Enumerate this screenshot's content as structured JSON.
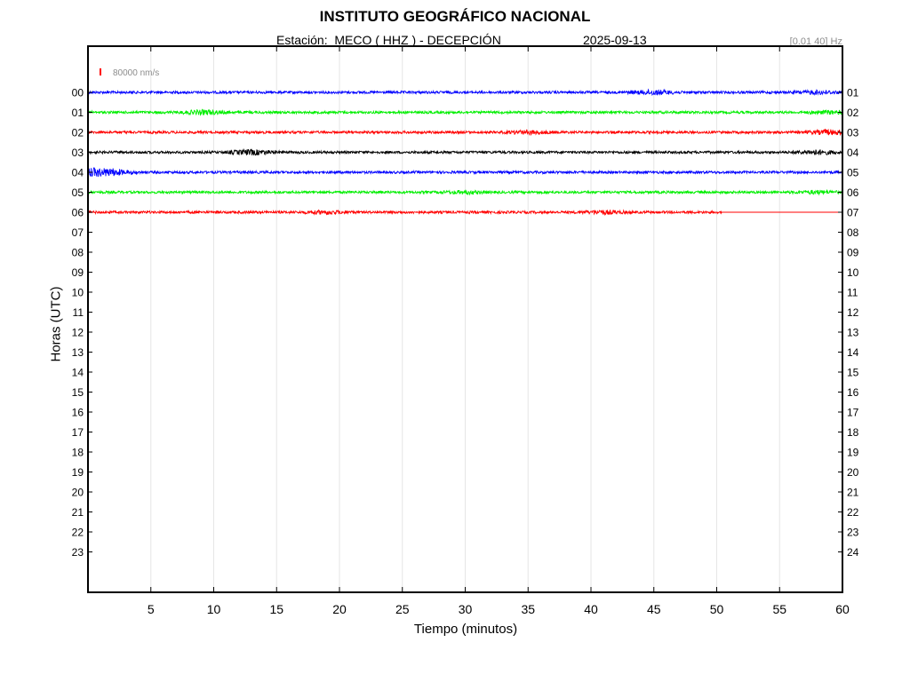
{
  "header": {
    "title": "INSTITUTO GEOGRÁFICO NACIONAL",
    "subtitle": "Estación:  MECO ( HHZ ) - DECEPCIÓN",
    "date": "2025-09-13",
    "filter": "[0.01 40] Hz"
  },
  "scale_label": "80000 nm/s",
  "chart_data": {
    "type": "line",
    "title": "INSTITUTO GEOGRÁFICO NACIONAL",
    "xlabel": "Tiempo (minutos)",
    "ylabel": "Horas (UTC)",
    "xlim": [
      0,
      60
    ],
    "x_ticks": [
      5,
      10,
      15,
      20,
      25,
      30,
      35,
      40,
      45,
      50,
      55,
      60
    ],
    "left_ticks": [
      "00",
      "01",
      "02",
      "03",
      "04",
      "05",
      "06",
      "07",
      "08",
      "09",
      "10",
      "11",
      "12",
      "13",
      "14",
      "15",
      "16",
      "17",
      "18",
      "19",
      "20",
      "21",
      "22",
      "23"
    ],
    "right_ticks": [
      "01",
      "02",
      "03",
      "04",
      "05",
      "06",
      "07",
      "08",
      "09",
      "10",
      "11",
      "12",
      "13",
      "14",
      "15",
      "16",
      "17",
      "18",
      "19",
      "20",
      "21",
      "22",
      "23",
      "24"
    ],
    "grid": "vertical",
    "series": [
      {
        "hour": "00",
        "color": "#0000ff",
        "end_minute": 60,
        "bursts": [
          [
            45,
            2.2
          ],
          [
            58,
            1.5
          ]
        ]
      },
      {
        "hour": "01",
        "color": "#00ee00",
        "end_minute": 60,
        "bursts": [
          [
            9.2,
            2.0
          ],
          [
            59,
            1.4
          ]
        ]
      },
      {
        "hour": "02",
        "color": "#ff0000",
        "end_minute": 60,
        "bursts": [
          [
            35,
            1.6
          ],
          [
            59,
            2.2
          ]
        ]
      },
      {
        "hour": "03",
        "color": "#000000",
        "end_minute": 60,
        "bursts": [
          [
            13,
            2.4
          ],
          [
            58,
            2.0
          ]
        ]
      },
      {
        "hour": "04",
        "color": "#0000ff",
        "end_minute": 60,
        "bursts": [
          [
            0.5,
            3.2
          ],
          [
            2,
            2.0
          ]
        ]
      },
      {
        "hour": "05",
        "color": "#00ee00",
        "end_minute": 60,
        "bursts": [
          [
            30,
            1.3
          ],
          [
            58,
            1.4
          ]
        ]
      },
      {
        "hour": "06",
        "color": "#ff0000",
        "end_minute": 50.4,
        "flat_to": 60,
        "bursts": [
          [
            19,
            1.5
          ],
          [
            41,
            1.7
          ]
        ]
      }
    ]
  }
}
